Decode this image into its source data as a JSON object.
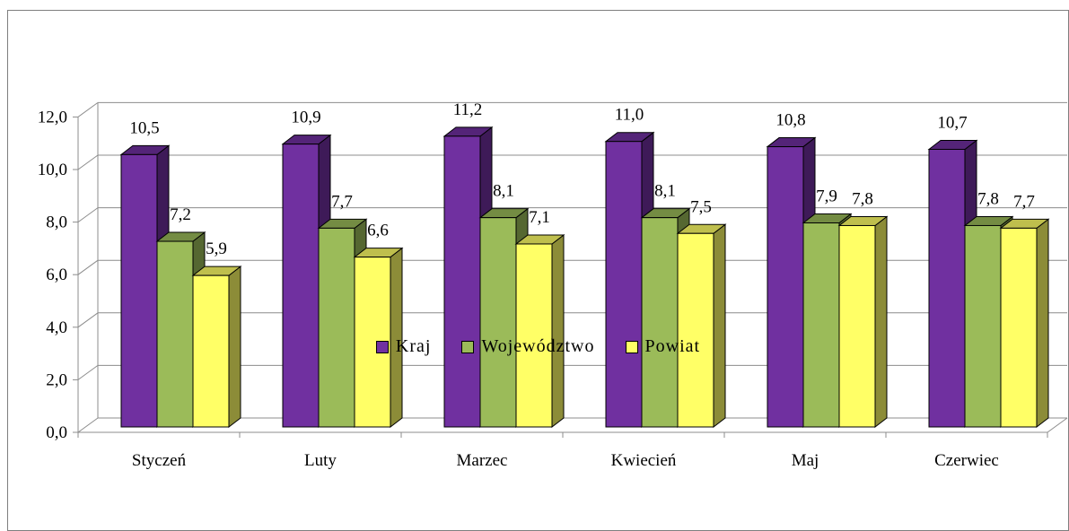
{
  "chart_data": {
    "type": "bar",
    "categories": [
      "Styczeń",
      "Luty",
      "Marzec",
      "Kwiecień",
      "Maj",
      "Czerwiec"
    ],
    "series": [
      {
        "name": "Kraj",
        "values": [
          10.5,
          10.9,
          11.2,
          11.0,
          10.8,
          10.7
        ],
        "labels": [
          "10,5",
          "10,9",
          "11,2",
          "11,0",
          "10,8",
          "10,7"
        ],
        "color": "#7030a0"
      },
      {
        "name": "Województwo",
        "values": [
          7.2,
          7.7,
          8.1,
          8.1,
          7.9,
          7.8
        ],
        "labels": [
          "7,2",
          "7,7",
          "8,1",
          "8,1",
          "7,9",
          "7,8"
        ],
        "color": "#9bbb59"
      },
      {
        "name": "Powiat",
        "values": [
          5.9,
          6.6,
          7.1,
          7.5,
          7.8,
          7.7
        ],
        "labels": [
          "5,9",
          "6,6",
          "7,1",
          "7,5",
          "7,8",
          "7,7"
        ],
        "color": "#ffff66"
      }
    ],
    "y_ticks": [
      "0,0",
      "2,0",
      "4,0",
      "6,0",
      "8,0",
      "10,0",
      "12,0"
    ],
    "ylim": [
      0,
      12
    ],
    "grid": true,
    "legend_position": "bottom",
    "style": "3d-clustered-column"
  }
}
